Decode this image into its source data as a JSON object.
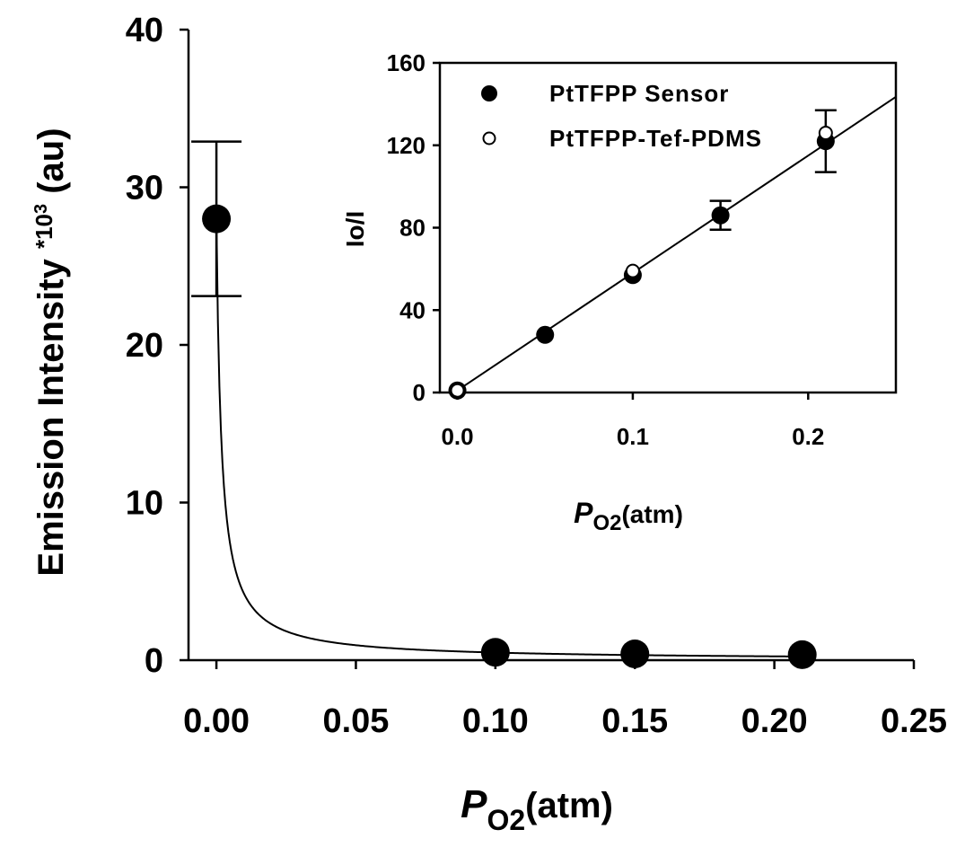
{
  "chart_data": [
    {
      "type": "scatter",
      "ylabel_prefix": "Emission Intensity ",
      "ylabel_sup": "*10",
      "ylabel_exp": "3",
      "ylabel_suffix": " (au)",
      "xlabel_main": "P",
      "xlabel_sub": "O2",
      "xlabel_unit": "(atm)",
      "xlim": [
        -0.01,
        0.25
      ],
      "ylim": [
        0,
        40
      ],
      "xticks": [
        "0.00",
        "0.05",
        "0.10",
        "0.15",
        "0.20",
        "0.25"
      ],
      "yticks": [
        "0",
        "10",
        "20",
        "30",
        "40"
      ],
      "series": [
        {
          "x": [
            0.0,
            0.1,
            0.15,
            0.21
          ],
          "y": [
            28.0,
            0.5,
            0.4,
            0.35
          ],
          "err": [
            4.9,
            0,
            0,
            0
          ]
        }
      ],
      "fit_curve": "Stern-Volmer decay",
      "fit_params": {
        "i0": 28.0,
        "k": 570
      }
    },
    {
      "type": "scatter",
      "ylabel": "Io/I",
      "xlabel_main": "P",
      "xlabel_sub": "O2",
      "xlabel_unit": "(atm)",
      "xlim": [
        -0.01,
        0.25
      ],
      "ylim": [
        0,
        160
      ],
      "xticks": [
        "0.0",
        "0.1",
        "0.2"
      ],
      "yticks": [
        "0",
        "40",
        "80",
        "120",
        "160"
      ],
      "legend_position": "top-left",
      "series": [
        {
          "name": "PtTFPP Sensor",
          "marker": "filled-circle",
          "x": [
            0.0,
            0.05,
            0.1,
            0.15,
            0.21
          ],
          "y": [
            1,
            28,
            57,
            86,
            122
          ],
          "err": [
            0,
            0,
            0,
            7,
            15
          ]
        },
        {
          "name": "PtTFPP-Tef-PDMS",
          "marker": "open-circle",
          "x": [
            0.0,
            0.1,
            0.21
          ],
          "y": [
            1,
            59,
            126
          ],
          "err": [
            0,
            0,
            0
          ]
        }
      ],
      "fit_line": {
        "slope": 570,
        "intercept": 1
      }
    }
  ]
}
